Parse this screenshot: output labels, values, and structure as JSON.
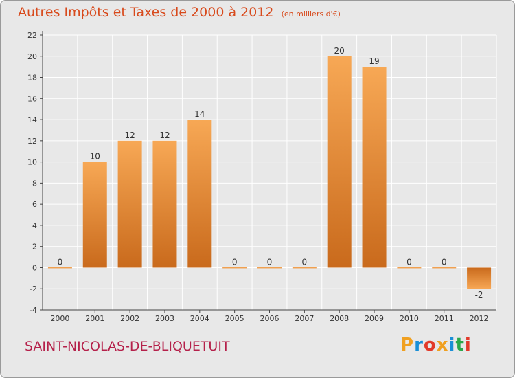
{
  "header": {
    "title": "Autres Impôts et Taxes de 2000 à 2012",
    "unit": "(en milliers d'€)"
  },
  "footer": {
    "commune": "SAINT-NICOLAS-DE-BLIQUETUIT"
  },
  "logo": {
    "letters": [
      "P",
      "r",
      "o",
      "x",
      "i",
      "t",
      "i"
    ],
    "colors": [
      "#f0a020",
      "#1a8fd6",
      "#e23a2a",
      "#f0a020",
      "#1a8fd6",
      "#2aa84a",
      "#e23a2a"
    ]
  },
  "chart_data": {
    "type": "bar",
    "categories": [
      "2000",
      "2001",
      "2002",
      "2003",
      "2004",
      "2005",
      "2006",
      "2007",
      "2008",
      "2009",
      "2010",
      "2011",
      "2012"
    ],
    "values": [
      0,
      10,
      12,
      12,
      14,
      0,
      0,
      0,
      20,
      19,
      0,
      0,
      -2
    ],
    "value_labels": [
      "0",
      "10",
      "12",
      "12",
      "14",
      "0",
      "0",
      "0",
      "20",
      "19",
      "0",
      "0",
      "-2"
    ],
    "ylim": [
      -4,
      22
    ],
    "yticks": [
      -4,
      -2,
      0,
      2,
      4,
      6,
      8,
      10,
      12,
      14,
      16,
      18,
      20,
      22
    ],
    "grid": true,
    "bar_color_light": "#f6a552",
    "bar_color_dark": "#c96a1c",
    "grid_color": "#ffffff"
  }
}
